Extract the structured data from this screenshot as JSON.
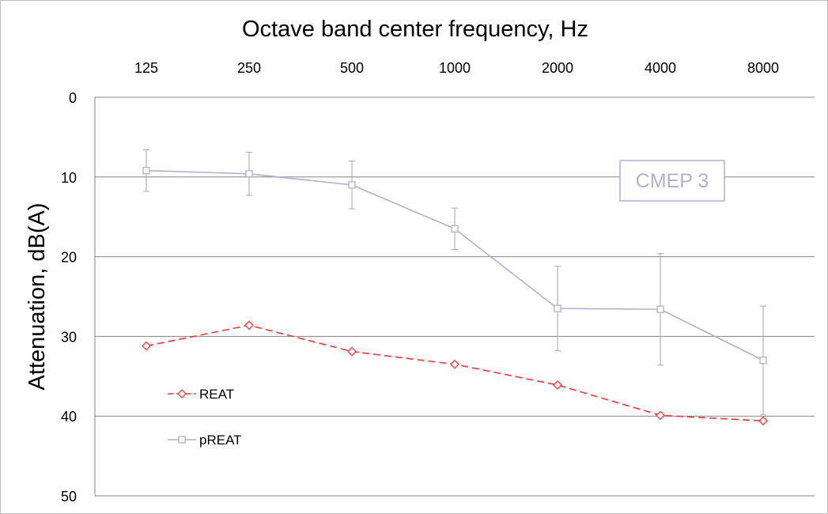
{
  "chart_data": {
    "type": "line",
    "title": "Octave band center frequency, Hz",
    "xlabel": "Octave band center frequency, Hz",
    "ylabel": "Attenuation, dB(A)",
    "categories": [
      "125",
      "250",
      "500",
      "1000",
      "2000",
      "4000",
      "8000"
    ],
    "x_axis_position": "top",
    "y_inverted": true,
    "ylim": [
      0,
      50
    ],
    "yticks": [
      "0",
      "10",
      "20",
      "30",
      "40",
      "50"
    ],
    "grid": true,
    "legend_position": "bottom-left",
    "annotation": "CMEP 3",
    "series": [
      {
        "name": "REAT",
        "values": [
          31.2,
          28.6,
          31.9,
          33.5,
          36.1,
          39.9,
          40.6
        ],
        "color": "#ff3333",
        "line_style": "dashed",
        "marker": "diamond"
      },
      {
        "name": "pREAT",
        "values": [
          9.2,
          9.6,
          11.0,
          16.5,
          26.5,
          26.6,
          33.0
        ],
        "error": [
          2.6,
          2.7,
          3.0,
          2.6,
          5.3,
          7.0,
          6.8
        ],
        "color": "#b3aed3",
        "line_style": "solid",
        "marker": "square"
      }
    ]
  }
}
